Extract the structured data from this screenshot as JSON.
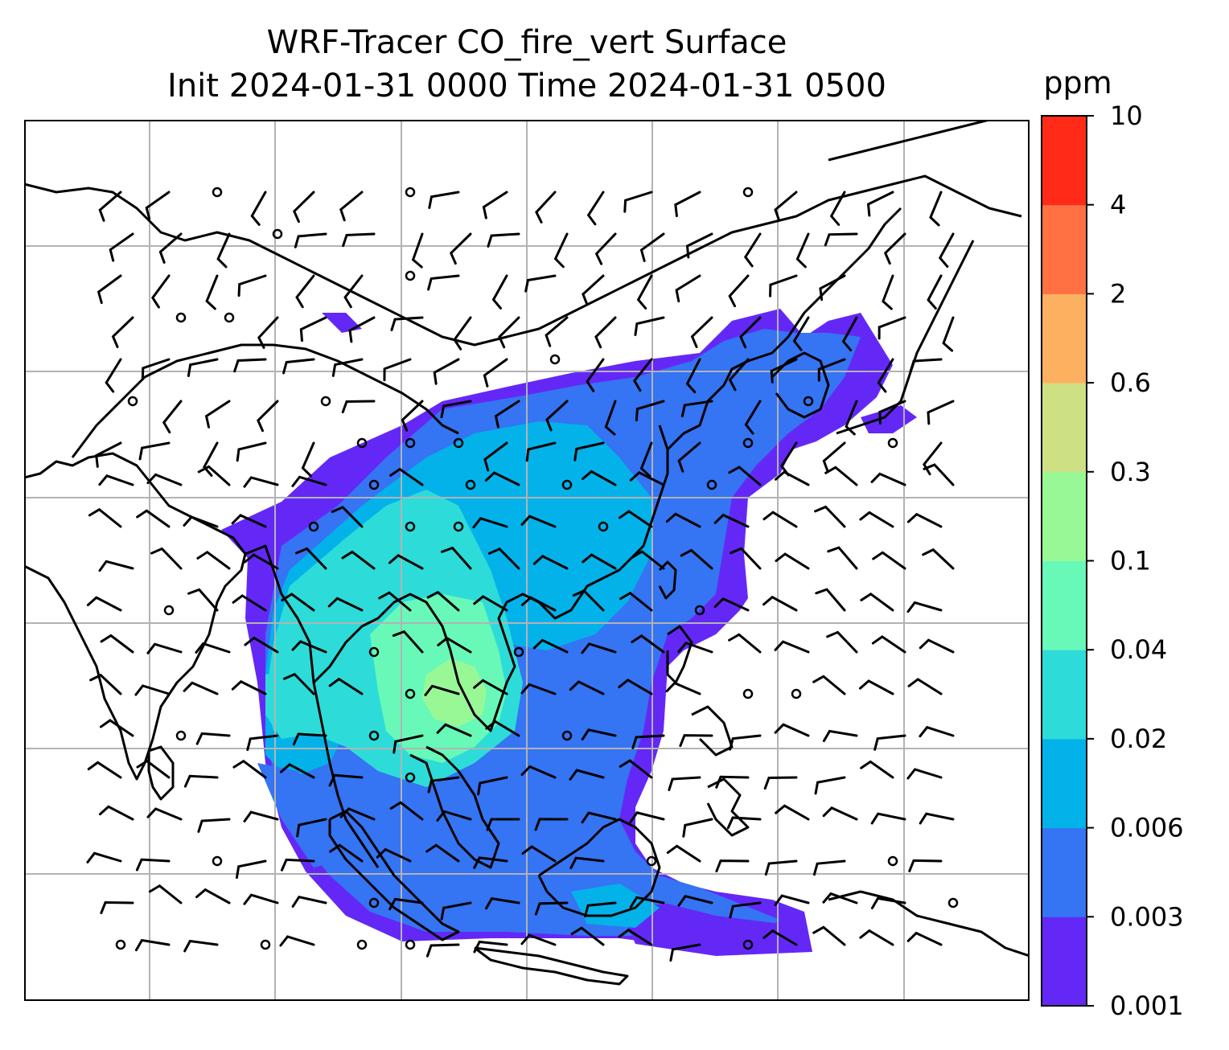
{
  "figure": {
    "title_line1": "WRF-Tracer CO_fire_vert Surface",
    "title_line2": "Init 2024-01-31 0000 Time 2024-01-31 0500"
  },
  "colorbar": {
    "unit": "ppm",
    "levels": [
      "0.001",
      "0.003",
      "0.006",
      "0.02",
      "0.04",
      "0.1",
      "0.3",
      "0.6",
      "2",
      "4",
      "10"
    ],
    "colors": [
      "#6428f6",
      "#3574f2",
      "#04b2ea",
      "#2ddcd9",
      "#68f9b8",
      "#99f896",
      "#cde084",
      "#feb061",
      "#ff7143",
      "#ff2a18"
    ]
  },
  "map": {
    "gridlines": true,
    "coastline_color": "#000000",
    "grid_color": "#b3b3b3",
    "wind_barb_color": "#000000"
  }
}
